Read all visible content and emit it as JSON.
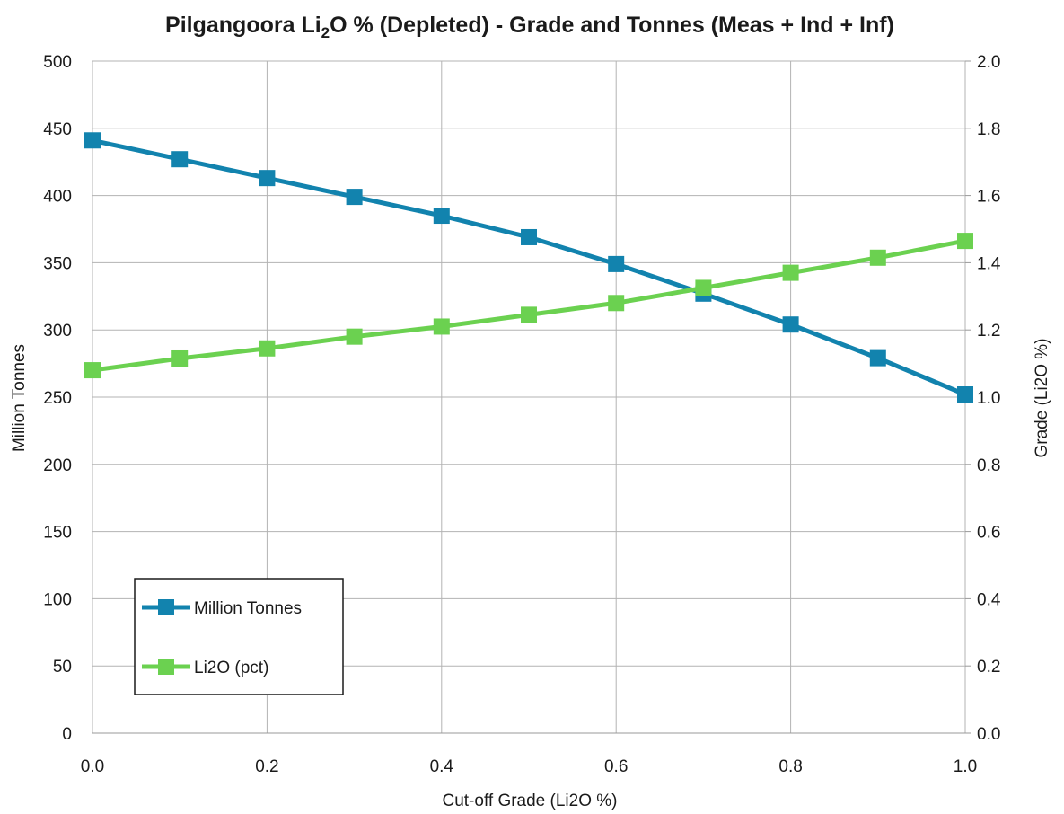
{
  "chart_data": {
    "type": "line",
    "title_main": "Pilgangoora Li",
    "title_sub": "2",
    "title_rest": "O % (Depleted) - Grade and Tonnes (Meas + Ind + Inf)",
    "xlabel": "Cut-off Grade (Li2O %)",
    "ylabel_left": "Million Tonnes",
    "ylabel_right": "Grade (Li2O %)",
    "x": [
      0.0,
      0.1,
      0.2,
      0.3,
      0.4,
      0.5,
      0.6,
      0.7,
      0.8,
      0.9,
      1.0
    ],
    "x_ticks": [
      "0.0",
      "0.2",
      "0.4",
      "0.6",
      "0.8",
      "1.0"
    ],
    "x_tick_values": [
      0.0,
      0.2,
      0.4,
      0.6,
      0.8,
      1.0
    ],
    "xlim": [
      0,
      1
    ],
    "ylim_left": [
      0,
      500
    ],
    "y_left_ticks": [
      "0",
      "50",
      "100",
      "150",
      "200",
      "250",
      "300",
      "350",
      "400",
      "450",
      "500"
    ],
    "ylim_right": [
      0,
      2
    ],
    "y_right_ticks": [
      "0.0",
      "0.2",
      "0.4",
      "0.6",
      "0.8",
      "1.0",
      "1.2",
      "1.4",
      "1.6",
      "1.8",
      "2.0"
    ],
    "grid": true,
    "legend_position": "bottom-left",
    "series": [
      {
        "name": "Million Tonnes",
        "axis": "left",
        "color": "#1283AE",
        "values": [
          441,
          427,
          413,
          399,
          385,
          369,
          349,
          327,
          304,
          279,
          252
        ]
      },
      {
        "name": "Li2O (pct)",
        "axis": "right",
        "color": "#6BD150",
        "values": [
          1.08,
          1.115,
          1.145,
          1.18,
          1.21,
          1.245,
          1.28,
          1.325,
          1.37,
          1.415,
          1.465
        ]
      }
    ]
  }
}
